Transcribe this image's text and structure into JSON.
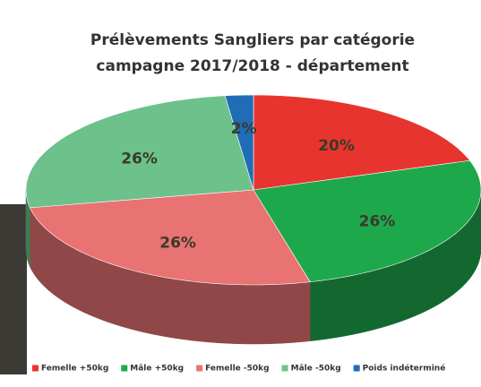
{
  "chart_data": {
    "type": "pie3d",
    "title": "Prélèvements Sangliers par catégorie",
    "subtitle": "campagne 2017/2018 - département",
    "categories": [
      "Femelle +50kg",
      "Mâle +50kg",
      "Femelle -50kg",
      "Mâle -50kg",
      "Poids indéterminé"
    ],
    "values": [
      20,
      26,
      26,
      26,
      2
    ],
    "value_labels": [
      "20%",
      "26%",
      "26%",
      "26%",
      "2%"
    ],
    "colors": [
      "#e8342e",
      "#1ea84c",
      "#e97273",
      "#6dc18b",
      "#1f6db6"
    ],
    "legend": "bottom"
  }
}
